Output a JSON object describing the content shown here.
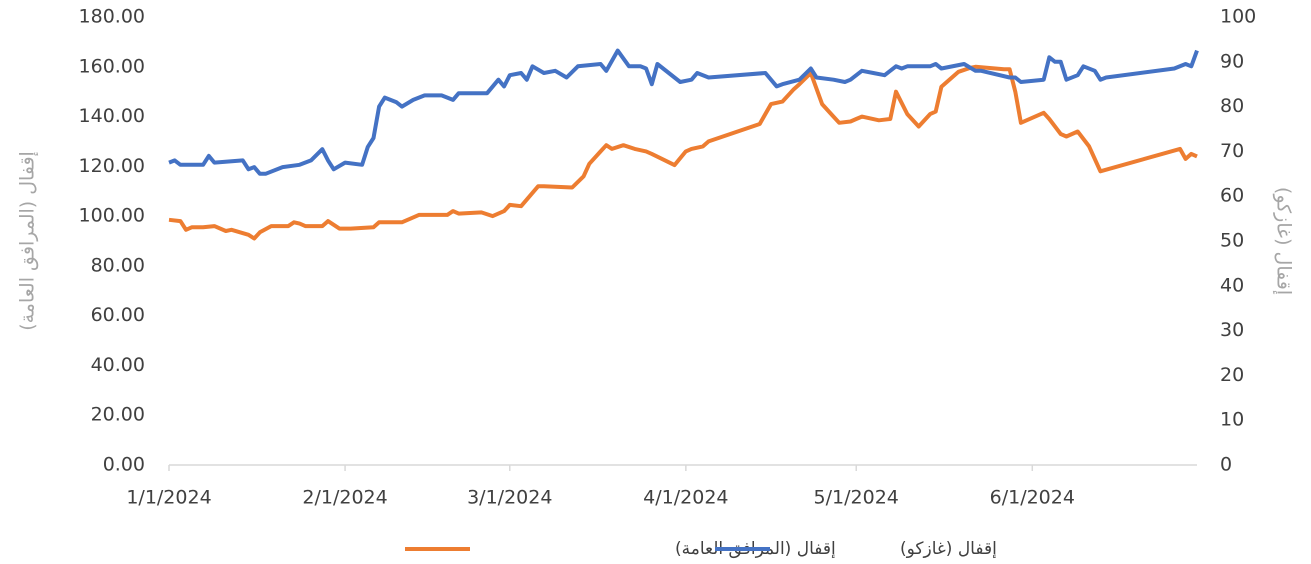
{
  "chart_data": {
    "type": "line",
    "y_label": "إقفال (المرافق العامة)",
    "y2_label": "إقفال (غازكو)",
    "xlim": [
      "1/1/2024",
      "6/30/2024"
    ],
    "xticks": [
      "1/1/2024",
      "2/1/2024",
      "3/1/2024",
      "4/1/2024",
      "5/1/2024",
      "6/1/2024"
    ],
    "ylim": [
      0,
      180
    ],
    "yticks": [
      {
        "value": 0,
        "label": "0.00"
      },
      {
        "value": 20,
        "label": "20.00"
      },
      {
        "value": 40,
        "label": "40.00"
      },
      {
        "value": 60,
        "label": "60.00"
      },
      {
        "value": 80,
        "label": "80.00"
      },
      {
        "value": 100,
        "label": "100.00"
      },
      {
        "value": 120,
        "label": "120.00"
      },
      {
        "value": 140,
        "label": "140.00"
      },
      {
        "value": 160,
        "label": "160.00"
      },
      {
        "value": 180,
        "label": "180.00"
      }
    ],
    "y2lim": [
      0,
      100
    ],
    "y2ticks": [
      0,
      10,
      20,
      30,
      40,
      50,
      60,
      70,
      80,
      90,
      100
    ],
    "legend": "bottom",
    "series": [
      {
        "name": "إقفال (المرافق العامة)",
        "color": "#ed7d31",
        "x": [
          "1/1/2024",
          "1/3/2024",
          "1/4/2024",
          "1/5/2024",
          "1/7/2024",
          "1/9/2024",
          "1/11/2024",
          "1/12/2024",
          "1/15/2024",
          "1/16/2024",
          "1/17/2024",
          "1/19/2024",
          "1/22/2024",
          "1/23/2024",
          "1/24/2024",
          "1/25/2024",
          "1/28/2024",
          "1/29/2024",
          "1/31/2024",
          "2/2/2024",
          "2/6/2024",
          "2/7/2024",
          "2/11/2024",
          "2/13/2024",
          "2/14/2024",
          "2/19/2024",
          "2/20/2024",
          "2/21/2024",
          "2/25/2024",
          "2/27/2024",
          "2/29/2024",
          "3/1/2024",
          "3/3/2024",
          "3/6/2024",
          "3/7/2024",
          "3/12/2024",
          "3/14/2024",
          "3/15/2024",
          "3/17/2024",
          "3/18/2024",
          "3/19/2024",
          "3/21/2024",
          "3/23/2024",
          "3/25/2024",
          "3/26/2024",
          "3/30/2024",
          "4/1/2024",
          "4/2/2024",
          "4/4/2024",
          "4/5/2024",
          "4/14/2024",
          "4/16/2024",
          "4/18/2024",
          "4/20/2024",
          "4/21/2024",
          "4/23/2024",
          "4/25/2024",
          "4/27/2024",
          "4/28/2024",
          "4/30/2024",
          "5/1/2024",
          "5/2/2024",
          "5/5/2024",
          "5/7/2024",
          "5/8/2024",
          "5/10/2024",
          "5/12/2024",
          "5/14/2024",
          "5/15/2024",
          "5/16/2024",
          "5/19/2024",
          "5/21/2024",
          "5/22/2024",
          "5/27/2024",
          "5/28/2024",
          "5/29/2024",
          "5/30/2024",
          "6/3/2024",
          "6/4/2024",
          "6/6/2024",
          "6/7/2024",
          "6/9/2024",
          "6/11/2024",
          "6/13/2024",
          "6/27/2024",
          "6/28/2024",
          "6/29/2024",
          "6/30/2024"
        ],
        "values": [
          98.5,
          98,
          94.5,
          95.5,
          95.5,
          96,
          94,
          94.5,
          92.5,
          91,
          93.5,
          96,
          96,
          97.5,
          97,
          96,
          96,
          98,
          95,
          95,
          95.5,
          97.5,
          97.5,
          99.5,
          100.5,
          100.5,
          102,
          101,
          101.5,
          100,
          102,
          104.5,
          104,
          112,
          112,
          111.5,
          116,
          121,
          126,
          128.5,
          127,
          128.5,
          127,
          126,
          125,
          120.5,
          126,
          127,
          128,
          130,
          137,
          145,
          146,
          151,
          153,
          157.5,
          145,
          140,
          137.5,
          138,
          139,
          140,
          138.5,
          139,
          150,
          141,
          136,
          141,
          142,
          152,
          158,
          159.5,
          160,
          159,
          159,
          150,
          137.5,
          141.5,
          139,
          133,
          132,
          134,
          128,
          118,
          127,
          123,
          125,
          124
        ]
      },
      {
        "name": "إقفال (غازكو)",
        "color": "#4472c4",
        "axis": "y2",
        "x": [
          "1/1/2024",
          "1/2/2024",
          "1/3/2024",
          "1/7/2024",
          "1/8/2024",
          "1/9/2024",
          "1/14/2024",
          "1/15/2024",
          "1/16/2024",
          "1/17/2024",
          "1/18/2024",
          "1/21/2024",
          "1/24/2024",
          "1/26/2024",
          "1/28/2024",
          "1/29/2024",
          "1/30/2024",
          "2/1/2024",
          "2/4/2024",
          "2/5/2024",
          "2/6/2024",
          "2/7/2024",
          "2/8/2024",
          "2/10/2024",
          "2/11/2024",
          "2/13/2024",
          "2/15/2024",
          "2/18/2024",
          "2/19/2024",
          "2/20/2024",
          "2/21/2024",
          "2/25/2024",
          "2/26/2024",
          "2/28/2024",
          "2/29/2024",
          "3/1/2024",
          "3/3/2024",
          "3/4/2024",
          "3/5/2024",
          "3/7/2024",
          "3/9/2024",
          "3/11/2024",
          "3/13/2024",
          "3/17/2024",
          "3/18/2024",
          "3/20/2024",
          "3/22/2024",
          "3/24/2024",
          "3/25/2024",
          "3/26/2024",
          "3/27/2024",
          "3/31/2024",
          "4/2/2024",
          "4/3/2024",
          "4/5/2024",
          "4/15/2024",
          "4/17/2024",
          "4/18/2024",
          "4/21/2024",
          "4/23/2024",
          "4/24/2024",
          "4/27/2024",
          "4/29/2024",
          "4/30/2024",
          "5/2/2024",
          "5/4/2024",
          "5/6/2024",
          "5/8/2024",
          "5/9/2024",
          "5/10/2024",
          "5/14/2024",
          "5/15/2024",
          "5/16/2024",
          "5/20/2024",
          "5/22/2024",
          "5/23/2024",
          "5/28/2024",
          "5/29/2024",
          "5/30/2024",
          "6/3/2024",
          "6/4/2024",
          "6/5/2024",
          "6/6/2024",
          "6/7/2024",
          "6/9/2024",
          "6/10/2024",
          "6/12/2024",
          "6/13/2024",
          "6/14/2024",
          "6/26/2024",
          "6/28/2024",
          "6/29/2024",
          "6/30/2024"
        ],
        "values": [
          67.5,
          68,
          67,
          67,
          69,
          67.5,
          68,
          66,
          66.5,
          65,
          65,
          66.5,
          67,
          68,
          70.5,
          68,
          66,
          67.5,
          67,
          71,
          73,
          80,
          82,
          81,
          80,
          81.5,
          82.5,
          82.5,
          82,
          81.5,
          83,
          83,
          83,
          86,
          84.5,
          87,
          87.5,
          86,
          89,
          87.5,
          88,
          86.5,
          89,
          89.5,
          88,
          92.5,
          89,
          89,
          88.5,
          85,
          89.5,
          85.5,
          86,
          87.5,
          86.5,
          87.5,
          84.5,
          85,
          86,
          88.5,
          86.5,
          86,
          85.5,
          86,
          88,
          87.5,
          87,
          89,
          88.5,
          89,
          89,
          89.5,
          88.5,
          89.5,
          88,
          88,
          86.5,
          86.5,
          85.5,
          86,
          91,
          90,
          90,
          86,
          87,
          89,
          88,
          86,
          86.5,
          88.5,
          89.5,
          89,
          92.5
        ]
      }
    ]
  }
}
